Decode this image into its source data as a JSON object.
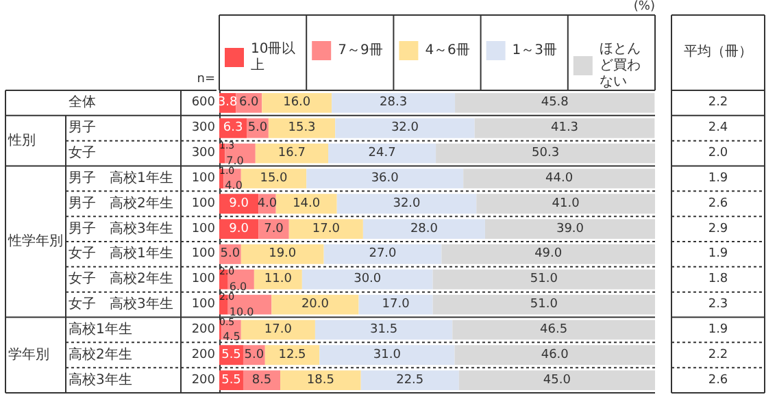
{
  "chart_data": {
    "type": "bar",
    "orientation": "horizontal",
    "stacked": true,
    "legend": "top",
    "grid": false,
    "tick_labels": "y",
    "categories": [
      "全体",
      "男子",
      "女子",
      "男子　高校1年生",
      "男子　高校2年生",
      "男子　高校3年生",
      "女子　高校1年生",
      "女子　高校2年生",
      "女子　高校3年生",
      "高校1年生",
      "高校2年生",
      "高校3年生"
    ],
    "xlim": [
      0,
      100
    ],
    "series": [
      {
        "name": "10冊以上",
        "color": "#ff4f4f",
        "values": [
          3.8,
          6.3,
          1.3,
          1.0,
          9.0,
          9.0,
          null,
          2.0,
          2.0,
          0.5,
          5.5,
          5.5
        ],
        "value_labels": [
          "3.8",
          "6.3",
          "1.3",
          "1.0",
          "9.0",
          "9.0",
          null,
          "2.0",
          "2.0",
          "0.5",
          "5.5",
          "5.5"
        ]
      },
      {
        "name": "7～9冊",
        "color": "#ff8a8a",
        "values": [
          6.0,
          5.0,
          7.0,
          4.0,
          4.0,
          7.0,
          5.0,
          6.0,
          10.0,
          4.5,
          5.0,
          8.5
        ],
        "value_labels": [
          "6.0",
          "5.0",
          "7.0",
          "4.0",
          "4.0",
          "7.0",
          "5.0",
          "6.0",
          "10.0",
          "4.5",
          "5.0",
          "8.5"
        ]
      },
      {
        "name": "4～6冊",
        "color": "#ffe196",
        "values": [
          16.0,
          15.3,
          16.7,
          15.0,
          14.0,
          17.0,
          19.0,
          11.0,
          20.0,
          17.0,
          12.5,
          18.5
        ],
        "value_labels": [
          "16.0",
          "15.3",
          "16.7",
          "15.0",
          "14.0",
          "17.0",
          "19.0",
          "11.0",
          "20.0",
          "17.0",
          "12.5",
          "18.5"
        ]
      },
      {
        "name": "1～3冊",
        "color": "#dae3f3",
        "values": [
          28.3,
          32.0,
          24.7,
          36.0,
          32.0,
          28.0,
          27.0,
          30.0,
          17.0,
          31.5,
          31.0,
          22.5
        ],
        "value_labels": [
          "28.3",
          "32.0",
          "24.7",
          "36.0",
          "32.0",
          "28.0",
          "27.0",
          "30.0",
          "17.0",
          "31.5",
          "31.0",
          "22.5"
        ]
      },
      {
        "name": "ほとんど買わない",
        "color": "#d9d9d9",
        "values": [
          45.8,
          41.3,
          50.3,
          44.0,
          41.0,
          39.0,
          49.0,
          51.0,
          51.0,
          46.5,
          46.0,
          45.0
        ],
        "value_labels": [
          "45.8",
          "41.3",
          "50.3",
          "44.0",
          "41.0",
          "39.0",
          "49.0",
          "51.0",
          "51.0",
          "46.5",
          "46.0",
          "45.0"
        ]
      }
    ],
    "annotations": [
      "(%)",
      "n=",
      "平均（冊）",
      "性別",
      "性学年別",
      "学年別",
      "600",
      "2.2",
      "300",
      "2.4",
      "300",
      "2.0",
      "100",
      "1.9",
      "100",
      "2.6",
      "100",
      "2.9",
      "100",
      "1.9",
      "100",
      "1.8",
      "100",
      "2.3",
      "200",
      "1.9",
      "200",
      "2.2",
      "200",
      "2.6"
    ]
  }
}
